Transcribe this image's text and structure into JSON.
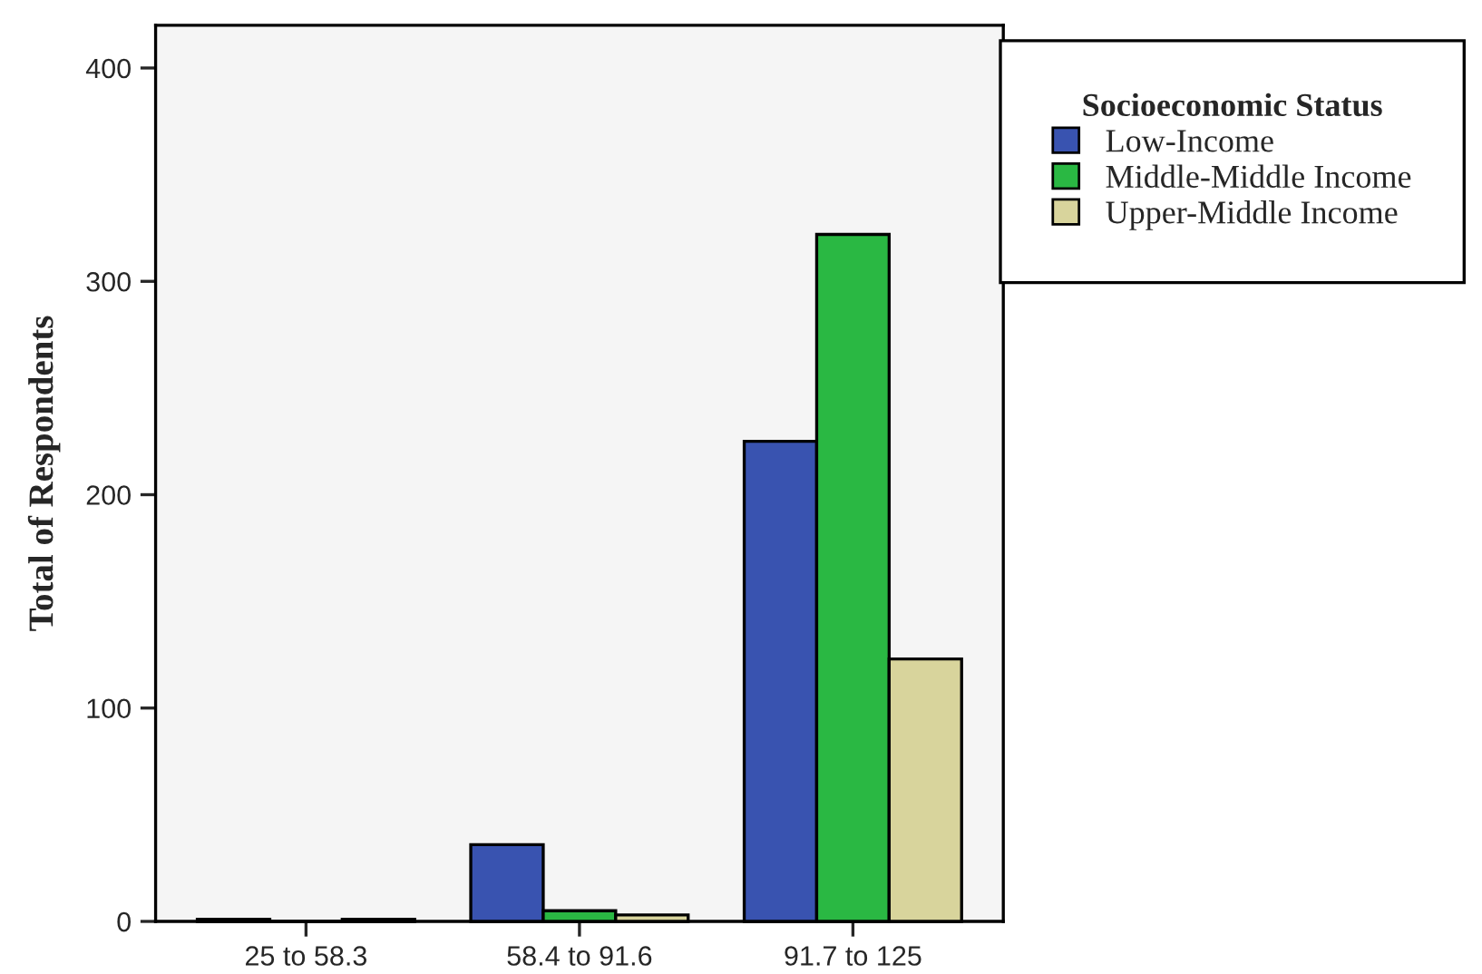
{
  "chart_data": {
    "type": "bar",
    "ylabel": "Total of Respondents",
    "legend_title": "Socioeconomic Status",
    "categories": [
      "25 to 58.3",
      "58.4 to 91.6",
      "91.7 to 125"
    ],
    "series": [
      {
        "name": "Low-Income",
        "color": "#3953b0",
        "values": [
          1,
          36,
          225
        ]
      },
      {
        "name": "Middle-Middle Income",
        "color": "#2ab843",
        "values": [
          0,
          5,
          322
        ]
      },
      {
        "name": "Upper-Middle Income",
        "color": "#d8d49c",
        "values": [
          1,
          3,
          123
        ]
      }
    ],
    "ylim": [
      0,
      420
    ],
    "yticks": [
      0,
      100,
      200,
      300,
      400
    ],
    "grid": false,
    "legend": "top right"
  }
}
